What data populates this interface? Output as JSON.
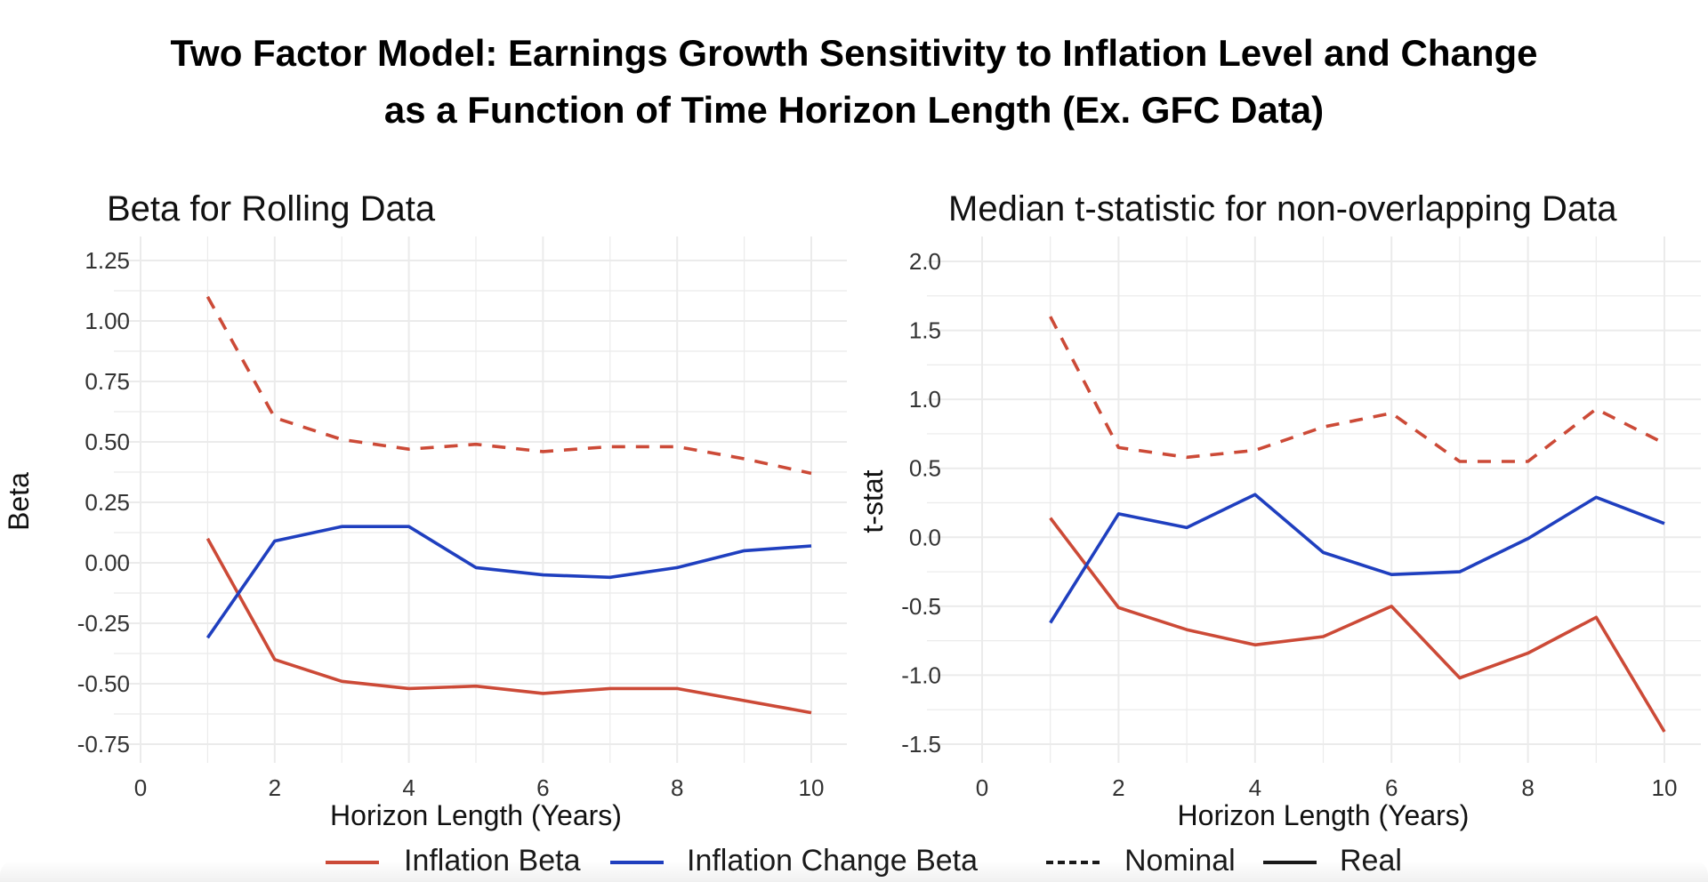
{
  "title_line1": "Two Factor Model: Earnings Growth Sensitivity to Inflation Level and Change",
  "title_line2": "as a Function of Time Horizon Length (Ex. GFC Data)",
  "colors": {
    "inflation_beta": "#cc4a37",
    "inflation_change_beta": "#1f3fbf",
    "grid": "#ebebeb",
    "text": "#1a1a1a"
  },
  "legend": {
    "inflation_beta": "Inflation Beta",
    "inflation_change_beta": "Inflation Change Beta",
    "nominal": "Nominal",
    "real": "Real"
  },
  "chart_data": [
    {
      "type": "line",
      "title": "Beta for Rolling Data",
      "xlabel": "Horizon Length (Years)",
      "ylabel": "Beta",
      "xlim": [
        0,
        10
      ],
      "ylim": [
        -0.75,
        1.25
      ],
      "xticks": [
        0,
        2,
        4,
        6,
        8,
        10
      ],
      "xtick_labels": [
        "0",
        "2",
        "4",
        "6",
        "8",
        "10"
      ],
      "yticks": [
        -0.75,
        -0.5,
        -0.25,
        0,
        0.25,
        0.5,
        0.75,
        1.0,
        1.25
      ],
      "ytick_labels": [
        "-0.75",
        "-0.50",
        "-0.25",
        "0.00",
        "0.25",
        "0.50",
        "0.75",
        "1.00",
        "1.25"
      ],
      "grid": true,
      "x": [
        1,
        2,
        3,
        4,
        5,
        6,
        7,
        8,
        9,
        10
      ],
      "series": [
        {
          "key": "inflation_beta",
          "style": "nominal",
          "values": [
            1.1,
            0.6,
            0.51,
            0.47,
            0.49,
            0.46,
            0.48,
            0.48,
            0.43,
            0.37
          ]
        },
        {
          "key": "inflation_beta",
          "style": "real",
          "values": [
            0.1,
            -0.4,
            -0.49,
            -0.52,
            -0.51,
            -0.54,
            -0.52,
            -0.52,
            -0.57,
            -0.62
          ]
        },
        {
          "key": "inflation_change_beta",
          "style": "real",
          "values": [
            -0.31,
            0.09,
            0.15,
            0.15,
            -0.02,
            -0.05,
            -0.06,
            -0.02,
            0.05,
            0.07
          ]
        }
      ]
    },
    {
      "type": "line",
      "title": "Median t-statistic for non-overlapping Data",
      "xlabel": "Horizon Length (Years)",
      "ylabel": "t-stat",
      "xlim": [
        0,
        10
      ],
      "ylim": [
        -1.5,
        2.0
      ],
      "xticks": [
        0,
        2,
        4,
        6,
        8,
        10
      ],
      "xtick_labels": [
        "0",
        "2",
        "4",
        "6",
        "8",
        "10"
      ],
      "yticks": [
        -1.5,
        -1.0,
        -0.5,
        0,
        0.5,
        1.0,
        1.5,
        2.0
      ],
      "ytick_labels": [
        "-1.5",
        "-1.0",
        "-0.5",
        "0.0",
        "0.5",
        "1.0",
        "1.5",
        "2.0"
      ],
      "grid": true,
      "x": [
        1,
        2,
        3,
        4,
        5,
        6,
        7,
        8,
        9,
        10
      ],
      "series": [
        {
          "key": "inflation_beta",
          "style": "nominal",
          "values": [
            1.6,
            0.65,
            0.58,
            0.63,
            0.8,
            0.9,
            0.55,
            0.55,
            0.93,
            0.68
          ]
        },
        {
          "key": "inflation_beta",
          "style": "real",
          "values": [
            0.14,
            -0.51,
            -0.67,
            -0.78,
            -0.72,
            -0.5,
            -1.02,
            -0.84,
            -0.58,
            -1.41
          ]
        },
        {
          "key": "inflation_change_beta",
          "style": "real",
          "values": [
            -0.62,
            0.17,
            0.07,
            0.31,
            -0.11,
            -0.27,
            -0.25,
            -0.01,
            0.29,
            0.1
          ]
        }
      ]
    }
  ]
}
